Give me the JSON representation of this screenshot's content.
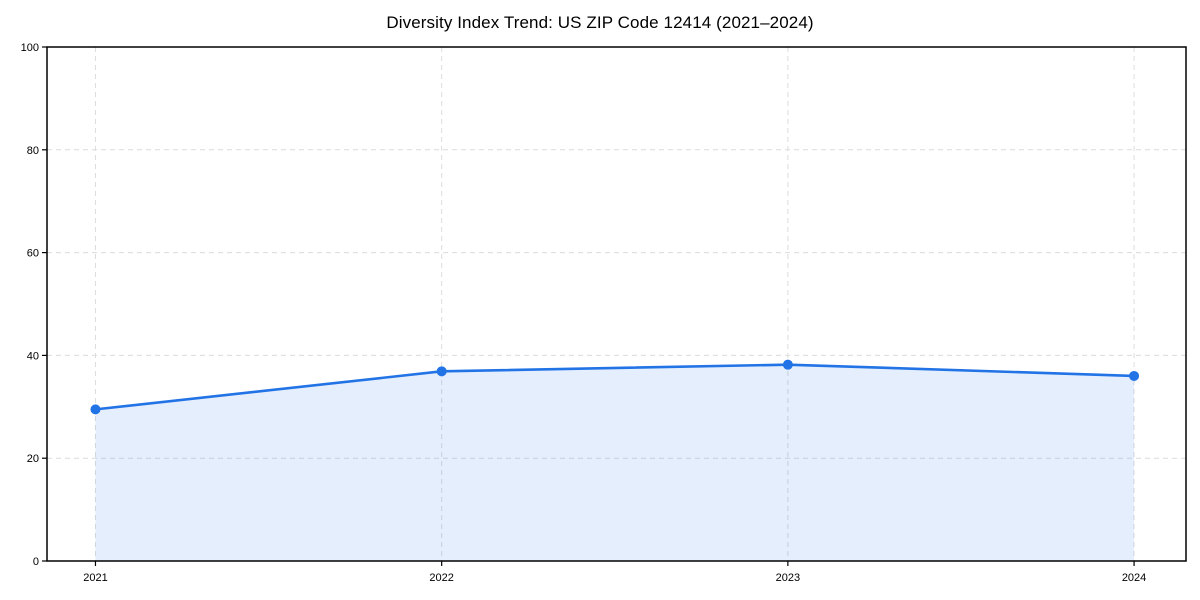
{
  "chart_data": {
    "type": "line",
    "title": "Diversity Index Trend: US ZIP Code 12414 (2021–2024)",
    "x": [
      2021,
      2022,
      2023,
      2024
    ],
    "categories": [
      "2021",
      "2022",
      "2023",
      "2024"
    ],
    "values": [
      29.5,
      36.9,
      38.2,
      36.0
    ],
    "xlabel": "",
    "ylabel": "",
    "ylim": [
      0,
      100
    ],
    "xlim": [
      2020.86,
      2024.15
    ],
    "yticks": [
      0,
      20,
      40,
      60,
      80,
      100
    ],
    "xtick_labels": [
      "2021",
      "2022",
      "2023",
      "2024"
    ],
    "grid": "dashed-both-axes",
    "legend": "none",
    "marker": "circle",
    "area_fill": true,
    "colors": {
      "line": "#2273e6",
      "marker": "#2273e6",
      "fill": "rgba(34, 115, 230, 0.12)",
      "grid": "#dcdcdc",
      "axis": "#000000",
      "text": "#000000"
    }
  }
}
